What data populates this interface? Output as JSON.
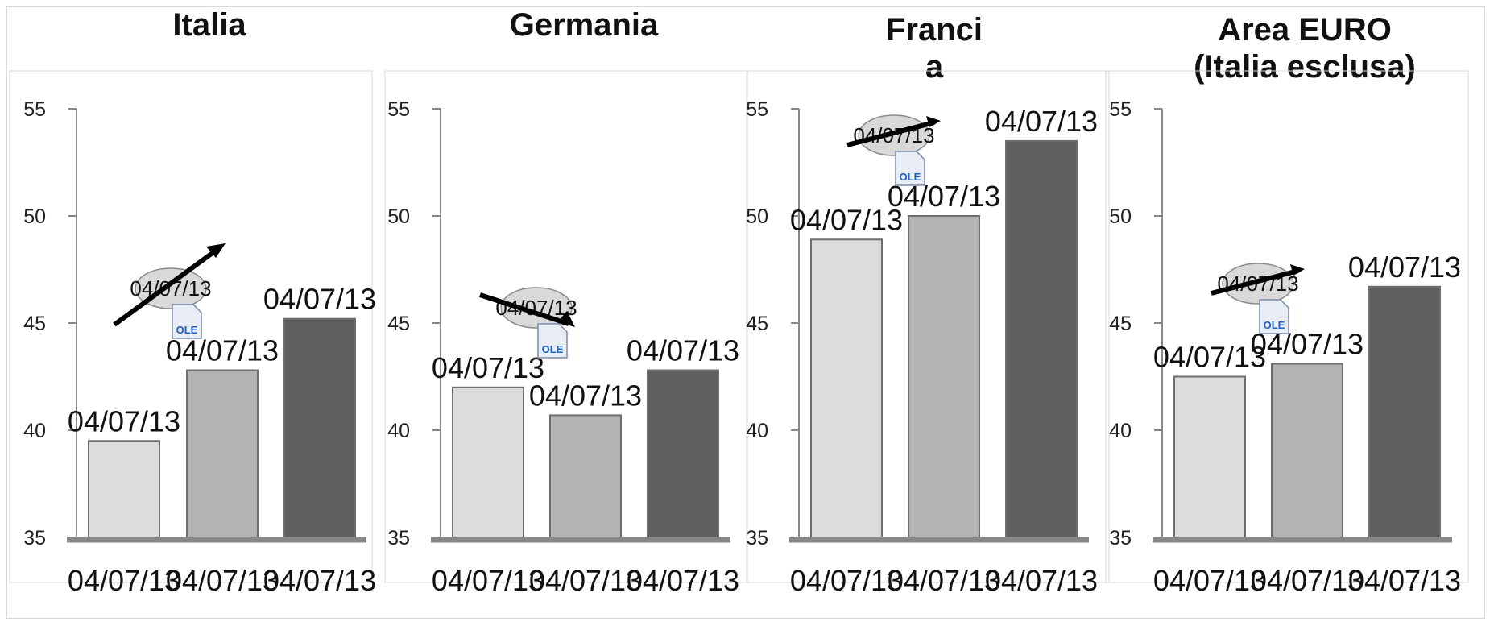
{
  "colors": {
    "series": [
      "#dcdcdc",
      "#b3b3b3",
      "#5f5f5f"
    ],
    "axis": "#888888",
    "frame": "#d9d9d9"
  },
  "chart_data": [
    {
      "type": "bar",
      "title": "Italia",
      "categories": [
        "04/07/13",
        "04/07/13",
        "04/07/13"
      ],
      "values": [
        39.5,
        42.8,
        45.2
      ],
      "data_labels": [
        "04/07/13",
        "04/07/13",
        "04/07/13"
      ],
      "yticks": [
        "55",
        "50",
        "45",
        "40",
        "35"
      ],
      "ylim": [
        35,
        55
      ],
      "grid": false,
      "legend": "none",
      "annotation": {
        "text": "04/07/13",
        "icon": "ole-object-icon",
        "arrow": "up-right"
      }
    },
    {
      "type": "bar",
      "title": "Germania",
      "categories": [
        "04/07/13",
        "04/07/13",
        "04/07/13"
      ],
      "values": [
        42.0,
        40.7,
        42.8
      ],
      "data_labels": [
        "04/07/13",
        "04/07/13",
        "04/07/13"
      ],
      "yticks": [
        "55",
        "50",
        "45",
        "40",
        "35"
      ],
      "ylim": [
        35,
        55
      ],
      "grid": false,
      "legend": "none",
      "annotation": {
        "text": "04/07/13",
        "icon": "ole-object-icon",
        "arrow": "down-right"
      }
    },
    {
      "type": "bar",
      "title": "Franci\na",
      "categories": [
        "04/07/13",
        "04/07/13",
        "04/07/13"
      ],
      "values": [
        48.9,
        50.0,
        53.5
      ],
      "data_labels": [
        "04/07/13",
        "04/07/13",
        "04/07/13"
      ],
      "yticks": [
        "55",
        "50",
        "45",
        "40",
        "35"
      ],
      "ylim": [
        35,
        55
      ],
      "grid": false,
      "legend": "none",
      "annotation": {
        "text": "04/07/13",
        "icon": "ole-object-icon",
        "arrow": "flat-right"
      }
    },
    {
      "type": "bar",
      "title": "Area EURO\n(Italia esclusa)",
      "categories": [
        "04/07/13",
        "04/07/13",
        "04/07/13"
      ],
      "values": [
        42.5,
        43.1,
        46.7
      ],
      "data_labels": [
        "04/07/13",
        "04/07/13",
        "04/07/13"
      ],
      "yticks": [
        "55",
        "50",
        "45",
        "40",
        "35"
      ],
      "ylim": [
        35,
        55
      ],
      "grid": false,
      "legend": "none",
      "annotation": {
        "text": "04/07/13",
        "icon": "ole-object-icon",
        "arrow": "flat-right"
      }
    }
  ]
}
